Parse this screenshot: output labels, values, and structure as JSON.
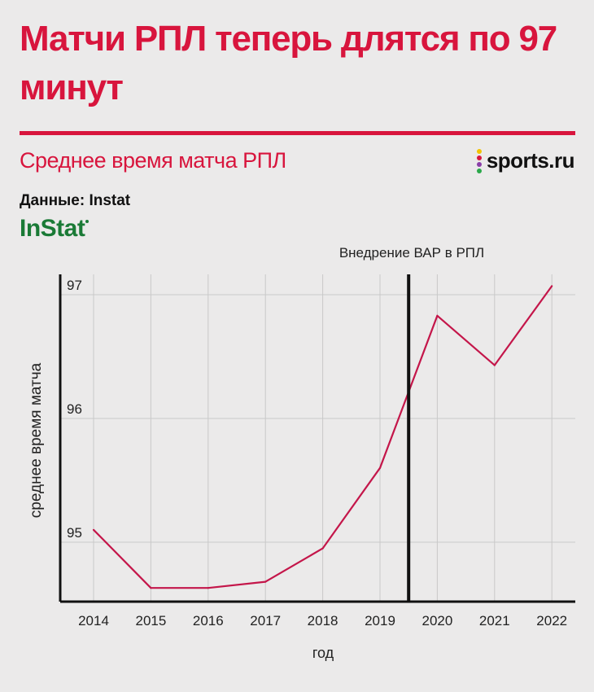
{
  "header": {
    "title": "Матчи РПЛ теперь длятся по 97 минут",
    "subtitle": "Среднее время матча РПЛ",
    "brand": "sports.ru",
    "source_label": "Данные: Instat",
    "source_logo": "InStat"
  },
  "colors": {
    "accent": "#d8153d",
    "line": "#c4164a",
    "instat_green": "#1a7a36",
    "background": "#ebeaea",
    "brand_dots": [
      "#f2c300",
      "#d8153d",
      "#8a3fa8",
      "#2aa84a"
    ]
  },
  "chart_data": {
    "type": "line",
    "categories": [
      "2014",
      "2015",
      "2016",
      "2017",
      "2018",
      "2019",
      "2020",
      "2021",
      "2022"
    ],
    "series": [
      {
        "values": [
          95.1,
          94.63,
          94.63,
          94.68,
          94.95,
          95.6,
          96.83,
          96.43,
          97.07
        ]
      }
    ],
    "xlabel": "год",
    "ylabel": "среднее время матча",
    "yticks": [
      95,
      96,
      97
    ],
    "ylim": [
      94.53,
      97.18
    ],
    "grid": true,
    "annotation": {
      "text": "Внедрение ВАР в РПЛ",
      "x_between": [
        "2019",
        "2020"
      ],
      "fraction": 0.5
    }
  }
}
